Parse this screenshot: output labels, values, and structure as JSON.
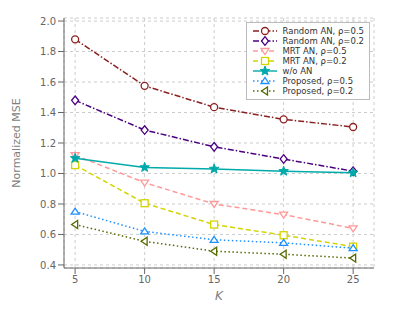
{
  "chart_data": {
    "type": "line",
    "xlabel": "K",
    "ylabel": "Normalized MSE",
    "x": [
      5,
      10,
      15,
      20,
      25
    ],
    "series": [
      {
        "name": "Random AN, ρ=0.5",
        "color": "#8B2020",
        "marker": "circle",
        "line_style": "dashdot",
        "values": [
          1.88,
          1.575,
          1.435,
          1.355,
          1.305
        ]
      },
      {
        "name": "Random AN, ρ=0.2",
        "color": "#4B0082",
        "marker": "diamond",
        "line_style": "dashdot",
        "values": [
          1.48,
          1.285,
          1.175,
          1.095,
          1.015
        ]
      },
      {
        "name": "MRT AN, ρ=0.5",
        "color": "#FF9999",
        "marker": "triangle-down",
        "line_style": "dashed",
        "values": [
          1.12,
          0.94,
          0.8,
          0.73,
          0.64
        ]
      },
      {
        "name": "MRT AN, ρ=0.2",
        "color": "#D4D400",
        "marker": "square",
        "line_style": "dashed",
        "values": [
          1.055,
          0.805,
          0.665,
          0.595,
          0.52
        ]
      },
      {
        "name": "w/o AN",
        "color": "#00AAAA",
        "marker": "star",
        "line_style": "solid",
        "values": [
          1.1,
          1.04,
          1.03,
          1.015,
          1.005
        ]
      },
      {
        "name": "Proposed, ρ=0.5",
        "color": "#1E90FF",
        "marker": "triangle-up",
        "line_style": "dotted",
        "values": [
          0.75,
          0.62,
          0.565,
          0.545,
          0.51
        ]
      },
      {
        "name": "Proposed, ρ=0.2",
        "color": "#556B00",
        "marker": "triangle-left",
        "line_style": "dotted",
        "values": [
          0.665,
          0.555,
          0.49,
          0.47,
          0.445
        ]
      }
    ],
    "xlim": [
      4.2,
      26.5
    ],
    "ylim": [
      0.38,
      2.02
    ],
    "xticks": [
      5,
      10,
      15,
      20,
      25
    ],
    "yticks": [
      0.4,
      0.6,
      0.8,
      {
        "value": 1.0,
        "label": "1.0"
      },
      1.2,
      1.4,
      1.6,
      1.8,
      {
        "value": 2.0,
        "label": "2.0"
      }
    ],
    "grid": true,
    "legend": "upper right"
  }
}
